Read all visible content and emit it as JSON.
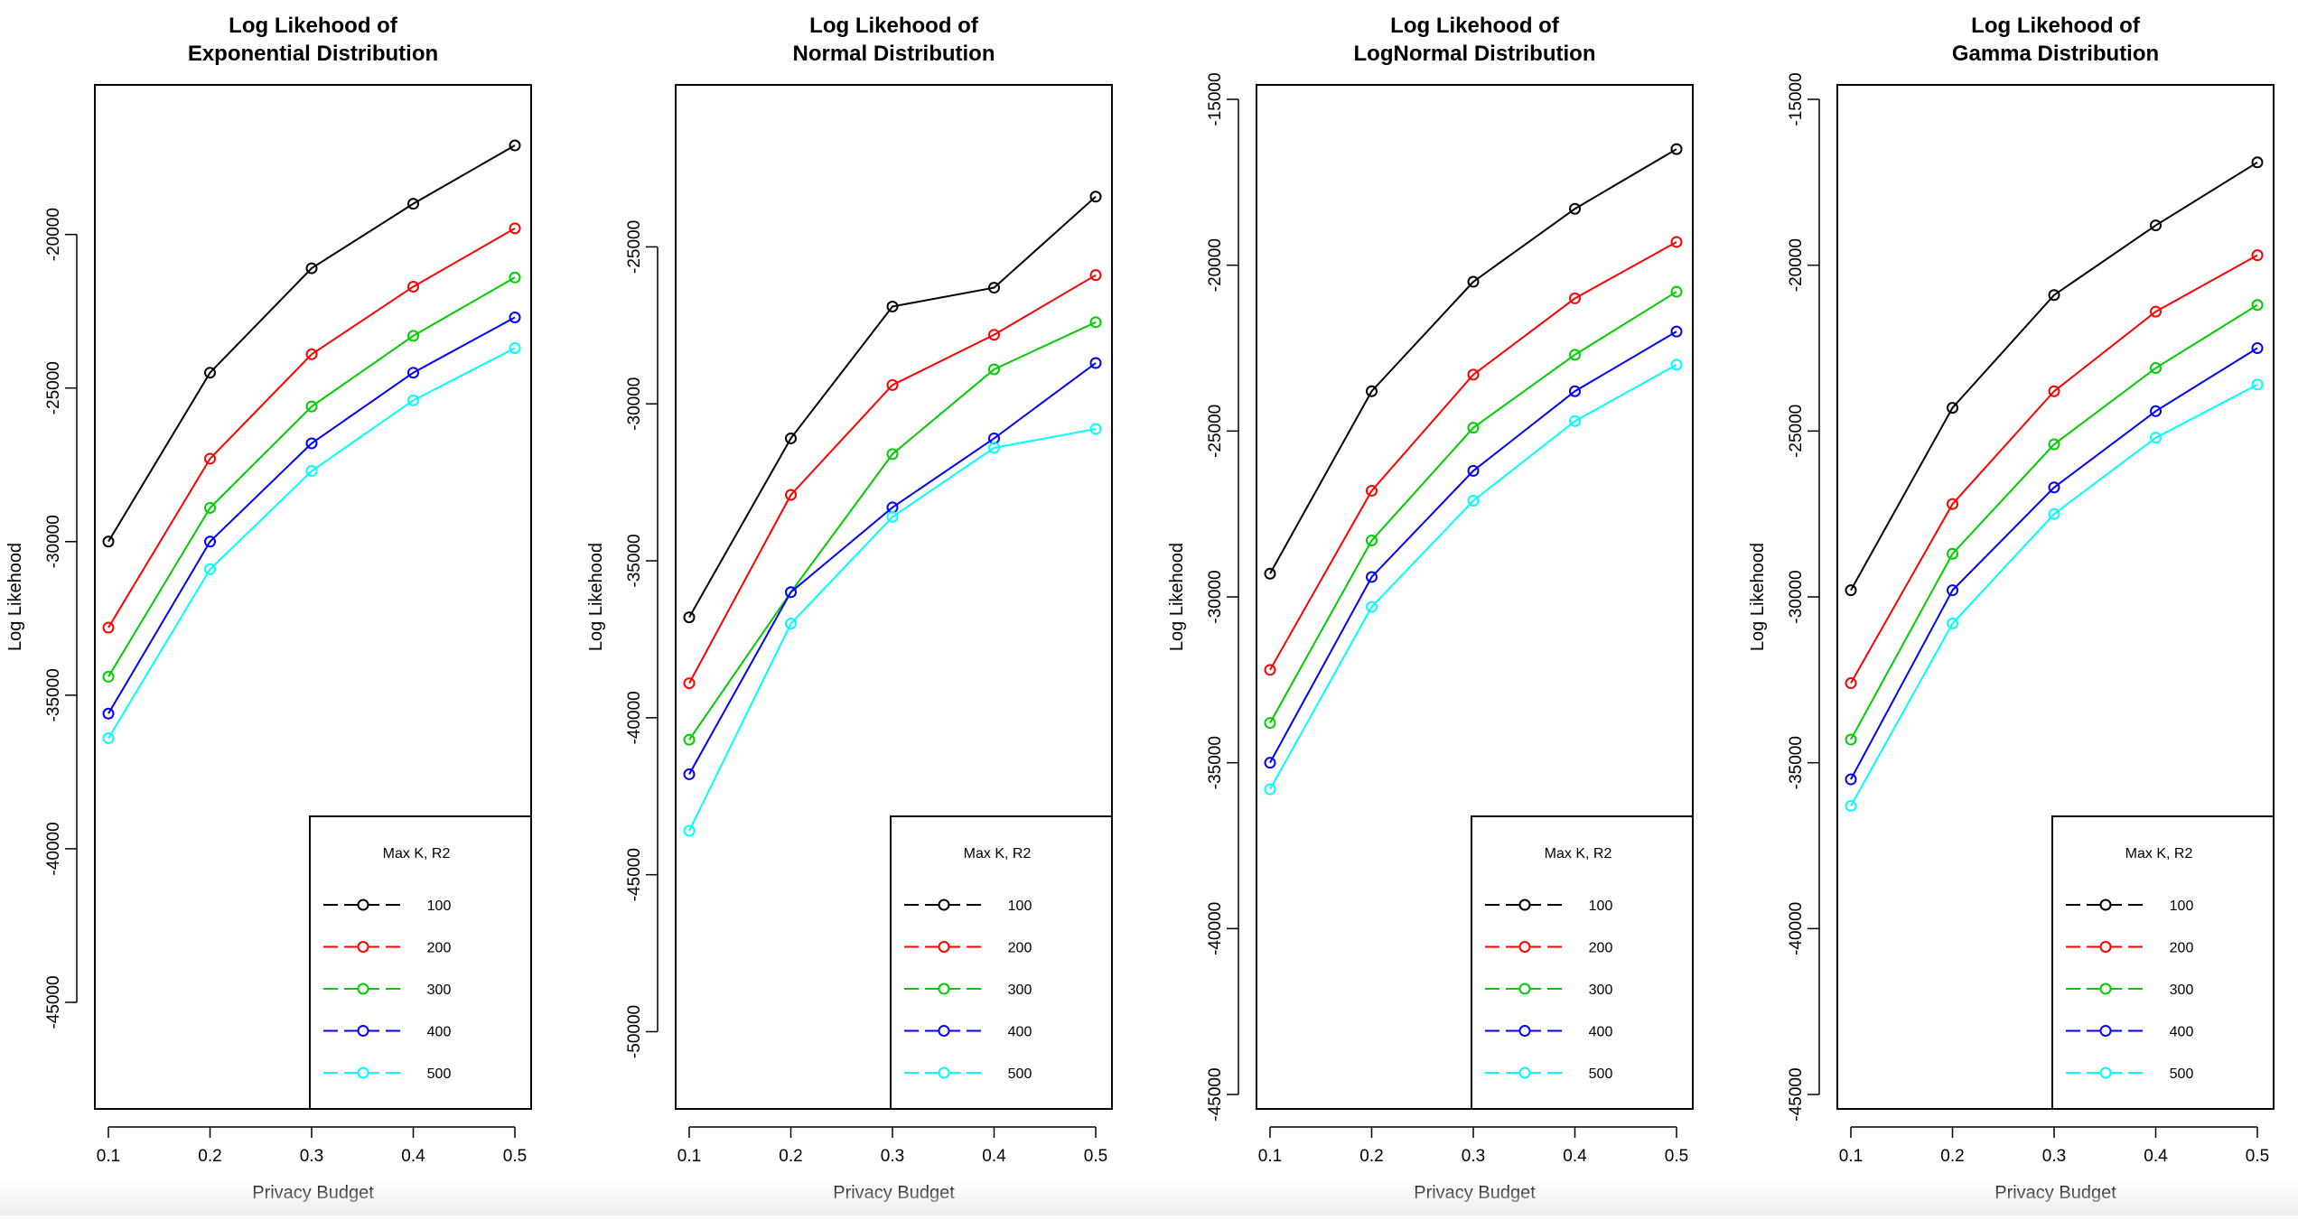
{
  "chart_data": [
    {
      "type": "line",
      "title": [
        "Log Likehood of",
        "Exponential Distribution"
      ],
      "xlabel": "Privacy Budget",
      "ylabel": "Log Likehood",
      "x": [
        0.1,
        0.2,
        0.3,
        0.4,
        0.5
      ],
      "xlim": [
        0.1,
        0.5
      ],
      "ylim": [
        -48000,
        -15600
      ],
      "xticks": [
        "0.1",
        "0.2",
        "0.3",
        "0.4",
        "0.5"
      ],
      "yticks": [
        -45000,
        -40000,
        -35000,
        -30000,
        -25000,
        -20000
      ],
      "legend": {
        "title": "Max K, R2",
        "position": "bottom-right"
      },
      "series": [
        {
          "name": "100",
          "color": "#000000",
          "values": [
            -30000,
            -24500,
            -21100,
            -19000,
            -17100
          ]
        },
        {
          "name": "200",
          "color": "#ff0000",
          "values": [
            -32800,
            -27300,
            -23900,
            -21700,
            -19800
          ]
        },
        {
          "name": "300",
          "color": "#00cd00",
          "values": [
            -34400,
            -28900,
            -25600,
            -23300,
            -21400
          ]
        },
        {
          "name": "400",
          "color": "#0000ff",
          "values": [
            -35600,
            -30000,
            -26800,
            -24500,
            -22700
          ]
        },
        {
          "name": "500",
          "color": "#00ffff",
          "values": [
            -36400,
            -30900,
            -27700,
            -25400,
            -23700
          ]
        }
      ]
    },
    {
      "type": "line",
      "title": [
        "Log Likehood of",
        "Normal Distribution"
      ],
      "xlabel": "Privacy Budget",
      "ylabel": "Log Likehood",
      "x": [
        0.1,
        0.2,
        0.3,
        0.4,
        0.5
      ],
      "xlim": [
        0.1,
        0.5
      ],
      "ylim": [
        -52000,
        -20300
      ],
      "xticks": [
        "0.1",
        "0.2",
        "0.3",
        "0.4",
        "0.5"
      ],
      "yticks": [
        -50000,
        -45000,
        -40000,
        -35000,
        -30000,
        -25000
      ],
      "legend": {
        "title": "Max K, R2",
        "position": "bottom-right"
      },
      "series": [
        {
          "name": "100",
          "color": "#000000",
          "values": [
            -36800,
            -31100,
            -26900,
            -26300,
            -23400
          ]
        },
        {
          "name": "200",
          "color": "#ff0000",
          "values": [
            -38900,
            -32900,
            -29400,
            -27800,
            -25900
          ]
        },
        {
          "name": "300",
          "color": "#00cd00",
          "values": [
            -40700,
            -36000,
            -31600,
            -28900,
            -27400
          ]
        },
        {
          "name": "400",
          "color": "#0000ff",
          "values": [
            -41800,
            -36000,
            -33300,
            -31100,
            -28700
          ]
        },
        {
          "name": "500",
          "color": "#00ffff",
          "values": [
            -43600,
            -37000,
            -33600,
            -31400,
            -30800
          ]
        }
      ]
    },
    {
      "type": "line",
      "title": [
        "Log Likehood of",
        "LogNormal Distribution"
      ],
      "xlabel": "Privacy Budget",
      "ylabel": "Log Likehood",
      "x": [
        0.1,
        0.2,
        0.3,
        0.4,
        0.5
      ],
      "xlim": [
        0.1,
        0.5
      ],
      "ylim": [
        -45000,
        -15000
      ],
      "xticks": [
        "0.1",
        "0.2",
        "0.3",
        "0.4",
        "0.5"
      ],
      "yticks": [
        -45000,
        -40000,
        -35000,
        -30000,
        -25000,
        -20000,
        -15000
      ],
      "legend": {
        "title": "Max K, R2",
        "position": "bottom-right"
      },
      "series": [
        {
          "name": "100",
          "color": "#000000",
          "values": [
            -29300,
            -23800,
            -20500,
            -18300,
            -16500
          ]
        },
        {
          "name": "200",
          "color": "#ff0000",
          "values": [
            -32200,
            -26800,
            -23300,
            -21000,
            -19300
          ]
        },
        {
          "name": "300",
          "color": "#00cd00",
          "values": [
            -33800,
            -28300,
            -24900,
            -22700,
            -20800
          ]
        },
        {
          "name": "400",
          "color": "#0000ff",
          "values": [
            -35000,
            -29400,
            -26200,
            -23800,
            -22000
          ]
        },
        {
          "name": "500",
          "color": "#00ffff",
          "values": [
            -35800,
            -30300,
            -27100,
            -24700,
            -23000
          ]
        }
      ]
    },
    {
      "type": "line",
      "title": [
        "Log Likehood of",
        "Gamma Distribution"
      ],
      "xlabel": "Privacy Budget",
      "ylabel": "Log Likehood",
      "x": [
        0.1,
        0.2,
        0.3,
        0.4,
        0.5
      ],
      "xlim": [
        0.1,
        0.5
      ],
      "ylim": [
        -45000,
        -15000
      ],
      "xticks": [
        "0.1",
        "0.2",
        "0.3",
        "0.4",
        "0.5"
      ],
      "yticks": [
        -45000,
        -40000,
        -35000,
        -30000,
        -25000,
        -20000,
        -15000
      ],
      "legend": {
        "title": "Max K, R2",
        "position": "bottom-right"
      },
      "series": [
        {
          "name": "100",
          "color": "#000000",
          "values": [
            -29800,
            -24300,
            -20900,
            -18800,
            -16900
          ]
        },
        {
          "name": "200",
          "color": "#ff0000",
          "values": [
            -32600,
            -27200,
            -23800,
            -21400,
            -19700
          ]
        },
        {
          "name": "300",
          "color": "#00cd00",
          "values": [
            -34300,
            -28700,
            -25400,
            -23100,
            -21200
          ]
        },
        {
          "name": "400",
          "color": "#0000ff",
          "values": [
            -35500,
            -29800,
            -26700,
            -24400,
            -22500
          ]
        },
        {
          "name": "500",
          "color": "#00ffff",
          "values": [
            -36300,
            -30800,
            -27500,
            -25200,
            -23600
          ]
        }
      ]
    }
  ]
}
